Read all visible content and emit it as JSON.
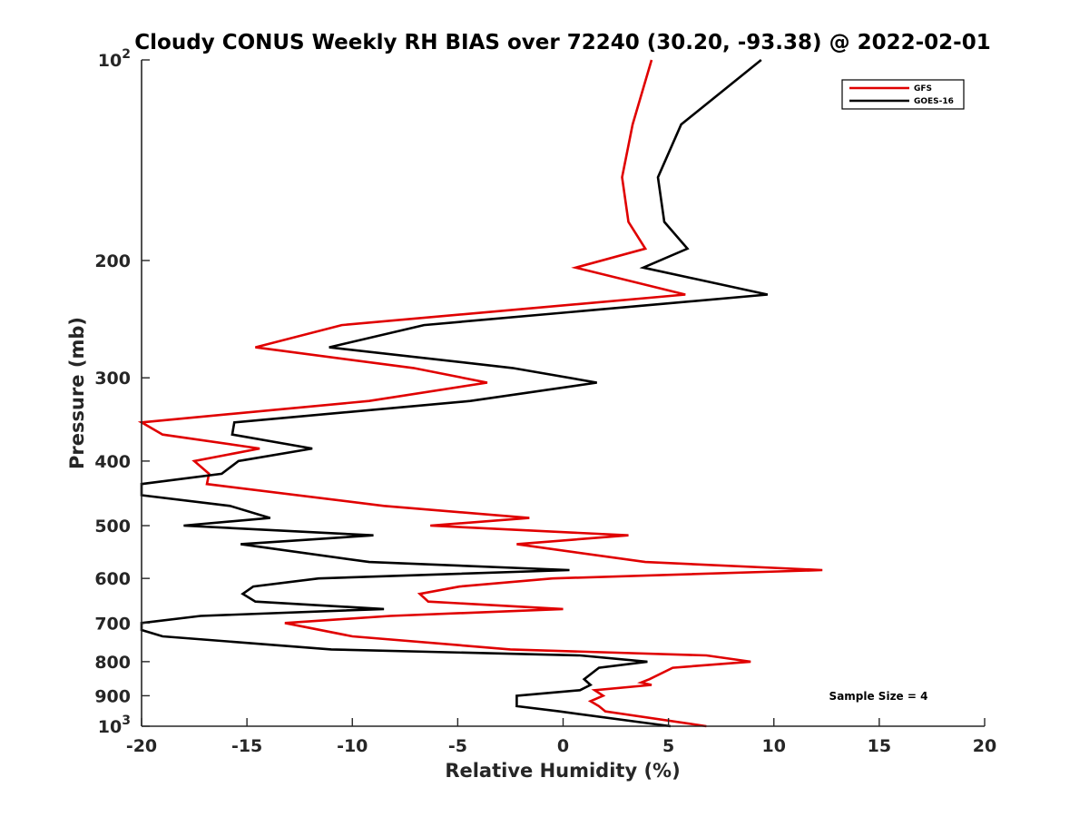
{
  "chart_data": {
    "type": "line",
    "title": "Cloudy CONUS Weekly RH BIAS over 72240 (30.20, -93.38) @ 2022-02-01",
    "xlabel": "Relative Humidity (%)",
    "ylabel": "Pressure (mb)",
    "xlim": [
      -20,
      20
    ],
    "ylim": [
      100,
      1000
    ],
    "yscale": "log",
    "y_reversed": true,
    "grid": false,
    "legend_position": "top-right",
    "x_ticks": [
      -20,
      -15,
      -10,
      -5,
      0,
      5,
      10,
      15,
      20
    ],
    "x_tick_labels": [
      "-20",
      "-15",
      "-10",
      "-5",
      "0",
      "5",
      "10",
      "15",
      "20"
    ],
    "y_ticks": [
      100,
      200,
      300,
      400,
      500,
      600,
      700,
      800,
      900,
      1000
    ],
    "y_tick_labels": [
      {
        "base": "10",
        "exp": "2"
      },
      {
        "base": "200",
        "exp": ""
      },
      {
        "base": "300",
        "exp": ""
      },
      {
        "base": "400",
        "exp": ""
      },
      {
        "base": "500",
        "exp": ""
      },
      {
        "base": "600",
        "exp": ""
      },
      {
        "base": "700",
        "exp": ""
      },
      {
        "base": "800",
        "exp": ""
      },
      {
        "base": "900",
        "exp": ""
      },
      {
        "base": "10",
        "exp": "3"
      }
    ],
    "annotation": "Sample Size = 4",
    "series": [
      {
        "name": "GFS",
        "color": "#e00000",
        "points": [
          [
            4.2,
            100
          ],
          [
            3.3,
            125
          ],
          [
            2.8,
            150
          ],
          [
            3.1,
            175
          ],
          [
            3.9,
            192
          ],
          [
            0.6,
            205
          ],
          [
            5.8,
            225
          ],
          [
            -10.5,
            250
          ],
          [
            -14.6,
            270
          ],
          [
            -7.1,
            290
          ],
          [
            -3.6,
            305
          ],
          [
            -9.2,
            325
          ],
          [
            -20.0,
            350
          ],
          [
            -19.0,
            365
          ],
          [
            -14.4,
            383
          ],
          [
            -17.5,
            400
          ],
          [
            -16.8,
            418
          ],
          [
            -16.9,
            433
          ],
          [
            -8.5,
            467
          ],
          [
            -1.6,
            487
          ],
          [
            -6.3,
            500
          ],
          [
            3.1,
            517
          ],
          [
            -2.2,
            533
          ],
          [
            3.9,
            567
          ],
          [
            12.3,
            583
          ],
          [
            -0.5,
            600
          ],
          [
            -4.9,
            617
          ],
          [
            -6.8,
            633
          ],
          [
            -6.4,
            650
          ],
          [
            0.0,
            667
          ],
          [
            -8.2,
            683
          ],
          [
            -13.2,
            700
          ],
          [
            -10.0,
            733
          ],
          [
            -2.5,
            767
          ],
          [
            6.8,
            783
          ],
          [
            8.9,
            800
          ],
          [
            5.2,
            817
          ],
          [
            4.1,
            850
          ],
          [
            3.7,
            860
          ],
          [
            4.2,
            867
          ],
          [
            1.5,
            883
          ],
          [
            1.9,
            900
          ],
          [
            1.3,
            917
          ],
          [
            1.7,
            933
          ],
          [
            2.0,
            950
          ],
          [
            6.8,
            1000
          ]
        ]
      },
      {
        "name": "GOES-16",
        "color": "#000000",
        "points": [
          [
            9.4,
            100
          ],
          [
            5.6,
            125
          ],
          [
            4.5,
            150
          ],
          [
            4.8,
            175
          ],
          [
            5.9,
            192
          ],
          [
            3.8,
            205
          ],
          [
            9.7,
            225
          ],
          [
            -6.6,
            250
          ],
          [
            -11.1,
            270
          ],
          [
            -2.4,
            290
          ],
          [
            1.6,
            305
          ],
          [
            -4.4,
            325
          ],
          [
            -15.6,
            350
          ],
          [
            -15.7,
            365
          ],
          [
            -11.9,
            383
          ],
          [
            -15.4,
            400
          ],
          [
            -16.2,
            418
          ],
          [
            -20.0,
            433
          ],
          [
            -20.0,
            450
          ],
          [
            -15.8,
            467
          ],
          [
            -13.9,
            487
          ],
          [
            -18.0,
            500
          ],
          [
            -9.0,
            517
          ],
          [
            -15.3,
            533
          ],
          [
            -9.2,
            567
          ],
          [
            0.3,
            583
          ],
          [
            -11.6,
            600
          ],
          [
            -14.7,
            617
          ],
          [
            -15.2,
            633
          ],
          [
            -14.6,
            650
          ],
          [
            -8.5,
            667
          ],
          [
            -17.2,
            683
          ],
          [
            -20.0,
            700
          ],
          [
            -20.0,
            717
          ],
          [
            -19.0,
            733
          ],
          [
            -11.0,
            767
          ],
          [
            0.8,
            783
          ],
          [
            4.0,
            800
          ],
          [
            1.7,
            817
          ],
          [
            1.0,
            850
          ],
          [
            1.3,
            867
          ],
          [
            0.8,
            883
          ],
          [
            -2.2,
            900
          ],
          [
            -2.2,
            917
          ],
          [
            -2.2,
            933
          ],
          [
            -0.2,
            950
          ],
          [
            5.1,
            1000
          ]
        ]
      }
    ]
  }
}
